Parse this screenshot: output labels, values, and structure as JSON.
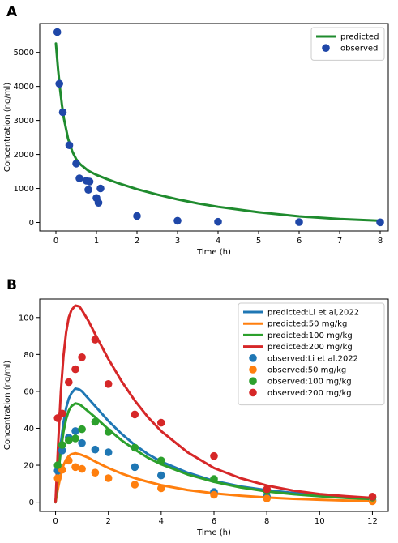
{
  "chart_data": [
    {
      "panel_label": "A",
      "type": "line+scatter",
      "xlabel": "Time (h)",
      "ylabel": "Concentration (ng/ml)",
      "xlim": [
        -0.4,
        8.2
      ],
      "ylim": [
        -250,
        5850
      ],
      "xticks": [
        0,
        1,
        2,
        3,
        4,
        5,
        6,
        7,
        8
      ],
      "yticks": [
        0,
        1000,
        2000,
        3000,
        4000,
        5000
      ],
      "legend_position": "top-right",
      "series": [
        {
          "name": "predicted",
          "kind": "line",
          "color": "#1f8b2e",
          "x": [
            0.0,
            0.05,
            0.1,
            0.15,
            0.2,
            0.3,
            0.4,
            0.5,
            0.6,
            0.8,
            1.0,
            1.25,
            1.5,
            2.0,
            2.5,
            3.0,
            3.5,
            4.0,
            5.0,
            6.0,
            7.0,
            8.0
          ],
          "y": [
            5260,
            4540,
            3940,
            3440,
            3040,
            2460,
            2100,
            1860,
            1710,
            1520,
            1400,
            1280,
            1170,
            980,
            820,
            680,
            560,
            460,
            300,
            180,
            100,
            50
          ]
        },
        {
          "name": "observed",
          "kind": "scatter",
          "color": "#1f47a8",
          "x": [
            0.033,
            0.083,
            0.17,
            0.33,
            0.5,
            0.58,
            0.75,
            0.8,
            0.83,
            1.0,
            1.05,
            1.1,
            2.0,
            3.0,
            4.0,
            6.0,
            8.0
          ],
          "y": [
            5600,
            4080,
            3240,
            2270,
            1730,
            1300,
            1230,
            960,
            1200,
            720,
            580,
            1000,
            190,
            50,
            20,
            10,
            5
          ]
        }
      ]
    },
    {
      "panel_label": "B",
      "type": "line+scatter",
      "xlabel": "Time (h)",
      "ylabel": "Concentration (ng/ml)",
      "xlim": [
        -0.6,
        12.6
      ],
      "ylim": [
        -5,
        110
      ],
      "xticks": [
        0,
        2,
        4,
        6,
        8,
        10,
        12
      ],
      "yticks": [
        0,
        20,
        40,
        60,
        80,
        100
      ],
      "legend_position": "top-right",
      "series": [
        {
          "name": "predicted:Li et al,2022",
          "kind": "line",
          "color": "#1f77b4",
          "x": [
            0,
            0.1,
            0.2,
            0.3,
            0.4,
            0.5,
            0.6,
            0.75,
            0.9,
            1.0,
            1.25,
            1.5,
            2.0,
            2.5,
            3.0,
            3.5,
            4.0,
            5.0,
            6.0,
            7.0,
            8.0,
            9.0,
            10.0,
            11.0,
            12.0
          ],
          "y": [
            0,
            17,
            32,
            43,
            51,
            56,
            59,
            61.5,
            61,
            60,
            56,
            52,
            44,
            37,
            31,
            26,
            22,
            16,
            11.5,
            8.5,
            6.5,
            5,
            3.7,
            2.8,
            2
          ]
        },
        {
          "name": "predicted:50 mg/kg",
          "kind": "line",
          "color": "#ff7f0e",
          "x": [
            0,
            0.1,
            0.2,
            0.3,
            0.4,
            0.5,
            0.6,
            0.75,
            0.9,
            1.0,
            1.25,
            1.5,
            2.0,
            2.5,
            3.0,
            3.5,
            4.0,
            5.0,
            6.0,
            7.0,
            8.0,
            9.0,
            10.0,
            11.0,
            12.0
          ],
          "y": [
            0,
            8,
            15,
            20,
            23,
            25,
            26,
            26.5,
            26,
            25.5,
            24,
            22,
            18.5,
            15.5,
            13,
            11,
            9.2,
            6.6,
            4.8,
            3.5,
            2.5,
            1.8,
            1.3,
            0.9,
            0.6
          ]
        },
        {
          "name": "predicted:100 mg/kg",
          "kind": "line",
          "color": "#2ca02c",
          "x": [
            0,
            0.1,
            0.2,
            0.3,
            0.4,
            0.5,
            0.6,
            0.75,
            0.9,
            1.0,
            1.25,
            1.5,
            2.0,
            2.5,
            3.0,
            3.5,
            4.0,
            5.0,
            6.0,
            7.0,
            8.0,
            9.0,
            10.0,
            11.0,
            12.0
          ],
          "y": [
            0,
            15,
            28,
            38,
            45,
            49.5,
            52,
            53.5,
            53,
            52,
            49,
            46,
            39.5,
            33.5,
            28.5,
            24,
            20.5,
            15,
            11,
            8,
            5.8,
            4.3,
            3.2,
            2.3,
            1.7
          ]
        },
        {
          "name": "predicted:200 mg/kg",
          "kind": "line",
          "color": "#d62728",
          "x": [
            0,
            0.1,
            0.2,
            0.3,
            0.4,
            0.5,
            0.6,
            0.75,
            0.9,
            1.0,
            1.25,
            1.5,
            2.0,
            2.5,
            3.0,
            3.5,
            4.0,
            5.0,
            6.0,
            7.0,
            8.0,
            9.0,
            10.0,
            11.0,
            12.0
          ],
          "y": [
            0,
            32,
            60,
            79,
            92,
            100,
            104,
            106.5,
            106,
            104,
            98,
            91,
            77.5,
            65.5,
            55,
            46,
            38.5,
            27,
            18.5,
            13,
            9,
            6.3,
            4.4,
            3.2,
            2.3
          ]
        },
        {
          "name": "observed:Li et al,2022",
          "kind": "scatter",
          "color": "#1f77b4",
          "x": [
            0.083,
            0.25,
            0.5,
            0.75,
            1.0,
            1.5,
            2.0,
            3.0,
            4.0,
            6.0,
            8.0,
            12.0
          ],
          "y": [
            17,
            28,
            35,
            38.5,
            32,
            28.5,
            27,
            19,
            14.5,
            5.5,
            3,
            1
          ]
        },
        {
          "name": "observed:50 mg/kg",
          "kind": "scatter",
          "color": "#ff7f0e",
          "x": [
            0.083,
            0.25,
            0.5,
            0.75,
            1.0,
            1.5,
            2.0,
            3.0,
            4.0,
            6.0,
            8.0,
            12.0
          ],
          "y": [
            13,
            17.5,
            22.5,
            19,
            18,
            16,
            13,
            9.5,
            7.5,
            4,
            2,
            0.5
          ]
        },
        {
          "name": "observed:100 mg/kg",
          "kind": "scatter",
          "color": "#2ca02c",
          "x": [
            0.083,
            0.25,
            0.5,
            0.75,
            1.0,
            1.5,
            2.0,
            3.0,
            4.0,
            6.0,
            8.0,
            12.0
          ],
          "y": [
            20,
            31,
            33.5,
            34.5,
            39.5,
            43.5,
            38,
            29.5,
            22.5,
            12.5,
            6,
            2.5
          ]
        },
        {
          "name": "observed:200 mg/kg",
          "kind": "scatter",
          "color": "#d62728",
          "x": [
            0.083,
            0.25,
            0.5,
            0.75,
            1.0,
            1.5,
            2.0,
            3.0,
            4.0,
            6.0,
            8.0,
            12.0
          ],
          "y": [
            45.5,
            48,
            65,
            72,
            78.5,
            88,
            64,
            47.5,
            43,
            25,
            7,
            3
          ]
        }
      ]
    }
  ]
}
